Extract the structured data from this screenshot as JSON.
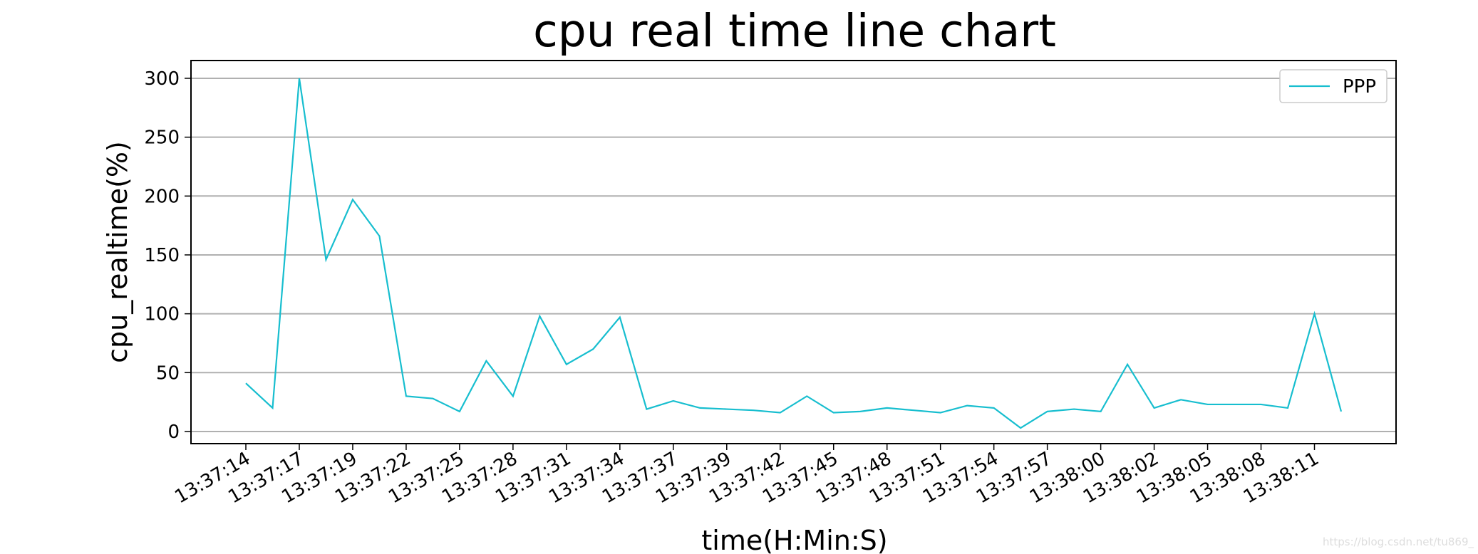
{
  "chart_data": {
    "type": "line",
    "title": "cpu real time line chart",
    "x_label": "time(H:Min:S)",
    "y_label": "cpu_realtime(%)",
    "categories": [
      "13:37:14",
      null,
      "13:37:17",
      null,
      "13:37:19",
      null,
      "13:37:22",
      null,
      "13:37:25",
      null,
      "13:37:28",
      null,
      "13:37:31",
      null,
      "13:37:34",
      null,
      "13:37:37",
      null,
      "13:37:39",
      null,
      "13:37:42",
      null,
      "13:37:45",
      null,
      "13:37:48",
      null,
      "13:37:51",
      null,
      "13:37:54",
      null,
      "13:37:57",
      null,
      "13:38:00",
      null,
      "13:38:02",
      null,
      "13:38:05",
      null,
      "13:38:08",
      null,
      "13:38:11",
      null
    ],
    "series": [
      {
        "name": "PPP",
        "color": "#17becf",
        "values": [
          41,
          20,
          300,
          146,
          197,
          166,
          30,
          28,
          17,
          60,
          30,
          98,
          57,
          70,
          97,
          19,
          26,
          20,
          19,
          18,
          16,
          30,
          16,
          17,
          20,
          18,
          16,
          22,
          20,
          3,
          17,
          19,
          17,
          57,
          20,
          27,
          23,
          23,
          23,
          20,
          100,
          17
        ]
      }
    ],
    "ylim": [
      -10.3,
      315.1
    ],
    "yticks": [
      0,
      50,
      100,
      150,
      200,
      250,
      300
    ],
    "grid": true,
    "legend": "upper right",
    "watermark": "https://blog.csdn.net/tu869_"
  }
}
